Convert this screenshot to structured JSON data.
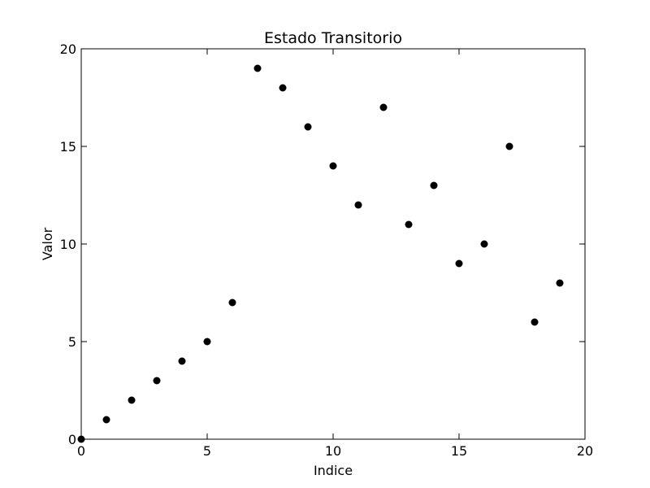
{
  "chart_data": {
    "type": "scatter",
    "title": "Estado Transitorio",
    "xlabel": "Indice",
    "ylabel": "Valor",
    "xlim": [
      0,
      20
    ],
    "ylim": [
      0,
      20
    ],
    "xticks": [
      "0",
      "5",
      "10",
      "15",
      "20"
    ],
    "yticks": [
      "0",
      "5",
      "10",
      "15",
      "20"
    ],
    "grid": false,
    "marker_color": "#000000",
    "series": [
      {
        "x": [
          0,
          1,
          2,
          3,
          4,
          5,
          6,
          7,
          8,
          9,
          10,
          11,
          12,
          13,
          14,
          15,
          16,
          17,
          18,
          19
        ],
        "y": [
          0,
          1,
          2,
          3,
          4,
          5,
          7,
          19,
          18,
          16,
          14,
          12,
          17,
          11,
          13,
          9,
          10,
          15,
          6,
          8
        ]
      }
    ]
  }
}
